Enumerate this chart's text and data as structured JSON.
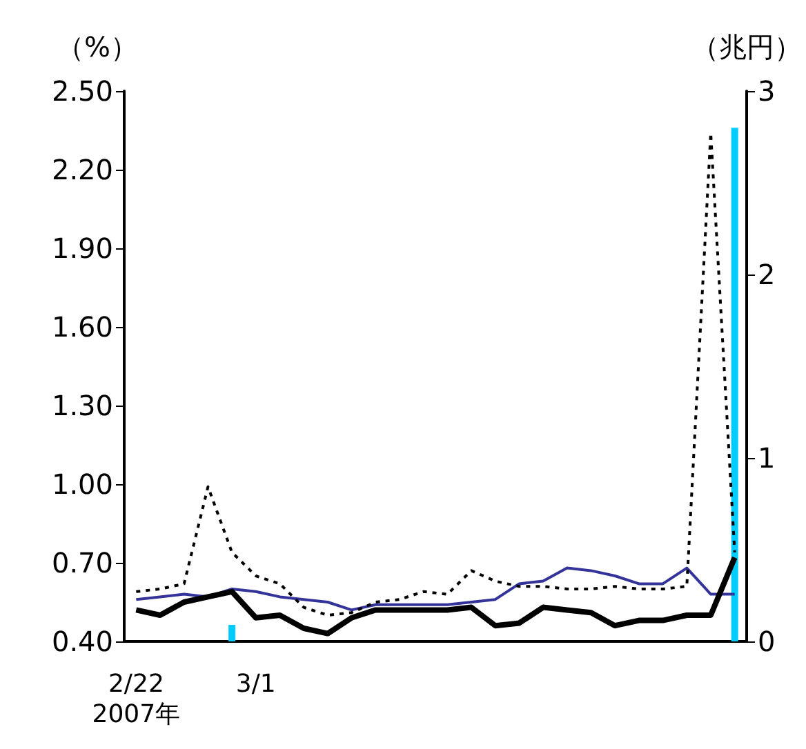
{
  "chart_data": {
    "type": "line",
    "ylabel": "（%）",
    "y2label": "（兆円）",
    "categories": [
      "2/22\n2007年",
      null,
      null,
      null,
      null,
      "3/1",
      null,
      null,
      null,
      null,
      null,
      null,
      null,
      null,
      null,
      null,
      null,
      null,
      null,
      null,
      null,
      null,
      null,
      null,
      null,
      null
    ],
    "series": [
      {
        "type": "bar",
        "axis": "y2",
        "color": "#00ccff",
        "values": [
          null,
          null,
          null,
          null,
          0.09,
          null,
          null,
          null,
          null,
          null,
          null,
          null,
          null,
          null,
          null,
          null,
          null,
          null,
          null,
          null,
          null,
          null,
          null,
          null,
          null,
          2.8
        ]
      },
      {
        "color": "#333399",
        "line_style": "solid",
        "values": [
          0.56,
          0.57,
          0.58,
          0.57,
          0.6,
          0.59,
          0.57,
          0.56,
          0.55,
          0.52,
          0.54,
          0.54,
          0.54,
          0.54,
          0.55,
          0.56,
          0.62,
          0.63,
          0.68,
          0.67,
          0.65,
          0.62,
          0.62,
          0.68,
          0.58,
          0.58
        ]
      },
      {
        "color": "#000000",
        "line_style": "dotted",
        "values": [
          0.59,
          0.6,
          0.62,
          0.99,
          0.74,
          0.65,
          0.62,
          0.53,
          0.5,
          0.51,
          0.55,
          0.56,
          0.59,
          0.58,
          0.67,
          0.63,
          0.61,
          0.61,
          0.6,
          0.6,
          0.61,
          0.6,
          0.6,
          0.61,
          2.34,
          0.74
        ]
      },
      {
        "color": "#000000",
        "line_style": "solid",
        "values": [
          0.52,
          0.5,
          0.55,
          0.57,
          0.59,
          0.49,
          0.5,
          0.45,
          0.43,
          0.49,
          0.52,
          0.52,
          0.52,
          0.52,
          0.53,
          0.46,
          0.47,
          0.53,
          0.52,
          0.51,
          0.46,
          0.48,
          0.48,
          0.5,
          0.5,
          0.72
        ]
      }
    ],
    "ylim": [
      0.4,
      2.5
    ],
    "yticks": [
      {
        "value": 0.4,
        "label": "0.40"
      },
      {
        "value": 0.7,
        "label": "0.70"
      },
      {
        "value": 1.0,
        "label": "1.00"
      },
      {
        "value": 1.3,
        "label": "1.30"
      },
      {
        "value": 1.6,
        "label": "1.60"
      },
      {
        "value": 1.9,
        "label": "1.90"
      },
      {
        "value": 2.2,
        "label": "2.20"
      },
      {
        "value": 2.5,
        "label": "2.50"
      }
    ],
    "y2lim": [
      0,
      3
    ],
    "y2ticks": [
      0,
      1,
      2,
      3
    ],
    "marker": "none"
  }
}
